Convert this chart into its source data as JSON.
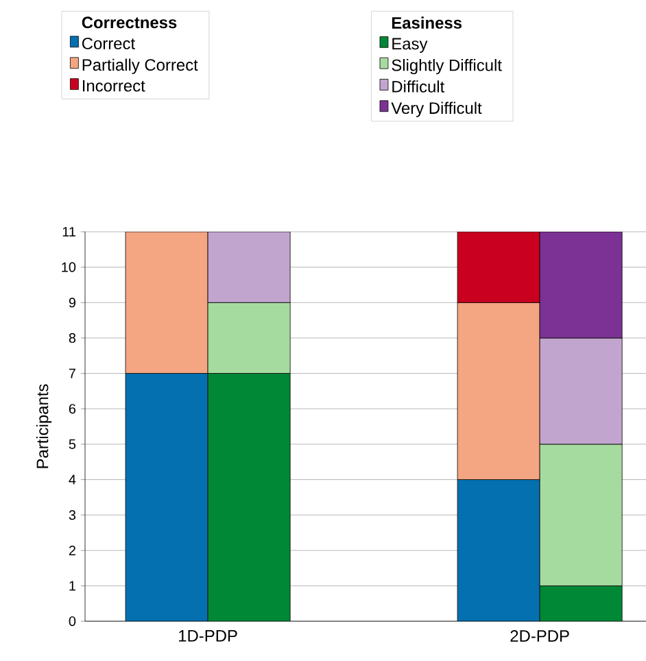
{
  "chart_data": [
    {
      "type": "bar",
      "stacked": true,
      "ylabel": "Participants",
      "legend_title": "Correctness",
      "categories": [
        "1D-PDP",
        "2D-PDP"
      ],
      "series": [
        {
          "name": "Correct",
          "color": "#0570b0",
          "values": [
            7,
            4
          ]
        },
        {
          "name": "Partially Correct",
          "color": "#f4a582",
          "values": [
            4,
            5
          ]
        },
        {
          "name": "Incorrect",
          "color": "#ca0020",
          "values": [
            0,
            2
          ]
        }
      ],
      "ylim": [
        0,
        11
      ],
      "yticks": [
        0,
        1,
        2,
        3,
        4,
        5,
        6,
        7,
        8,
        9,
        10,
        11
      ],
      "grid": "y",
      "legend": "top left"
    },
    {
      "type": "bar",
      "stacked": true,
      "legend_title": "Easiness",
      "categories": [
        null,
        null
      ],
      "series": [
        {
          "name": "Easy",
          "color": "#008837",
          "values": [
            7,
            1
          ]
        },
        {
          "name": "Slightly Difficult",
          "color": "#a6dba0",
          "values": [
            2,
            4
          ]
        },
        {
          "name": "Difficult",
          "color": "#c2a5cf",
          "values": [
            2,
            3
          ]
        },
        {
          "name": "Very Difficult",
          "color": "#7b3294",
          "values": [
            0,
            3
          ]
        }
      ],
      "ylim": [
        0,
        11
      ],
      "yticks": [
        0,
        1,
        2,
        3,
        4,
        5,
        6,
        7,
        8,
        9,
        10,
        11
      ],
      "tick_labels": false,
      "legend": "top right"
    }
  ]
}
